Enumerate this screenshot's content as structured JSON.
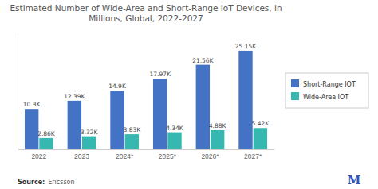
{
  "chart_data": {
    "type": "bar",
    "title": "Estimated Number of Wide-Area and Short-Range IoT Devices, in\nMillions, Global, 2022-2027",
    "categories": [
      "2022",
      "2023",
      "2024*",
      "2025*",
      "2026*",
      "2027*"
    ],
    "series": [
      {
        "name": "Short-Range IOT",
        "color": "#4472c4",
        "values": [
          10.3,
          12.39,
          14.9,
          17.97,
          21.56,
          25.15
        ],
        "value_labels": [
          "10.3K",
          "12.39K",
          "14.9K",
          "17.97K",
          "21.56K",
          "25.15K"
        ]
      },
      {
        "name": "Wide-Area IOT",
        "color": "#36b8b0",
        "values": [
          2.86,
          3.32,
          3.83,
          4.34,
          4.88,
          5.42
        ],
        "value_labels": [
          "2.86K",
          "3.32K",
          "3.83K",
          "4.34K",
          "4.88K",
          "5.42K"
        ]
      }
    ],
    "ylim": [
      0,
      30
    ],
    "data_labels": true,
    "tick_labels": "x",
    "legend": "right",
    "annotations": [
      "Source:",
      "Ericsson",
      "M"
    ]
  }
}
